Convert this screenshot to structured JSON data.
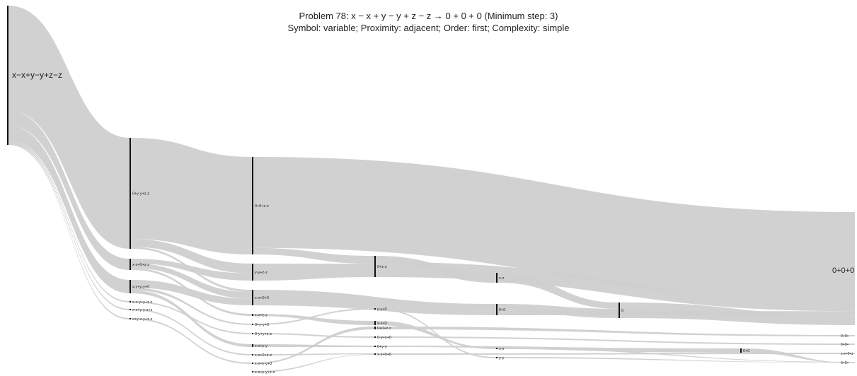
{
  "title": {
    "line1": "Problem 78: x − x + y − y + z − z → 0 + 0 + 0 (Minimum step: 3)",
    "line2": "Symbol: variable; Proximity: adjacent; Order: first; Complexity: simple"
  },
  "colors": {
    "link": "#cfcfcf",
    "link_minor": "#e4e4e4",
    "node": "#111111"
  },
  "nodes": [
    {
      "id": "n0",
      "label": "x−x+y−y+z−z",
      "step": 0,
      "size": "big"
    },
    {
      "id": "n1",
      "label": "0+y-y+z-z",
      "step": 1
    },
    {
      "id": "n2",
      "label": "x-x+0+z-z",
      "step": 1
    },
    {
      "id": "n3",
      "label": "x-x+y-y+0",
      "step": 1
    },
    {
      "id": "n4",
      "label": "x-x-y+y+z-z",
      "step": 1
    },
    {
      "id": "n5",
      "label": "x-x+y-y-z+z",
      "step": 1
    },
    {
      "id": "n6",
      "label": "x+y-x-y+z-z",
      "step": 1
    },
    {
      "id": "n7",
      "label": "0+0+z-z",
      "step": 2
    },
    {
      "id": "n8",
      "label": "y-y+z-z",
      "step": 2
    },
    {
      "id": "n9",
      "label": "x-x+0+0",
      "step": 2
    },
    {
      "id": "n10",
      "label": "x-x+z-z",
      "step": 2
    },
    {
      "id": "n11",
      "label": "0+y-y+0",
      "step": 2
    },
    {
      "id": "n12",
      "label": "0-y+y+z-z",
      "step": 2
    },
    {
      "id": "n13",
      "label": "x-x+y-y",
      "step": 2
    },
    {
      "id": "n14",
      "label": "x-x+0+z-z",
      "step": 2
    },
    {
      "id": "n15",
      "label": "x-x+y-y+0",
      "step": 2
    },
    {
      "id": "n16",
      "label": "x-x+y-y+z-z",
      "step": 2
    },
    {
      "id": "n17",
      "label": "0+z-z",
      "step": 3
    },
    {
      "id": "n18",
      "label": "y-y+0",
      "step": 3
    },
    {
      "id": "n19",
      "label": "x-x+0",
      "step": 3
    },
    {
      "id": "n20",
      "label": "0+0+z-z",
      "step": 3
    },
    {
      "id": "n21",
      "label": "0-y+y+0",
      "step": 3
    },
    {
      "id": "n22",
      "label": "0+y-y",
      "step": 3
    },
    {
      "id": "n23",
      "label": "x-x+0+0",
      "step": 3
    },
    {
      "id": "n24",
      "label": "z-z",
      "step": 4
    },
    {
      "id": "n25",
      "label": "0+0",
      "step": 4
    },
    {
      "id": "n26",
      "label": "x-x",
      "step": 4
    },
    {
      "id": "n27",
      "label": "y-y",
      "step": 4
    },
    {
      "id": "n28",
      "label": "0",
      "step": 5
    },
    {
      "id": "n29",
      "label": "0+0",
      "step": 6
    },
    {
      "id": "n30",
      "label": "0+0+0",
      "step": 7,
      "size": "big"
    },
    {
      "id": "n31",
      "label": "0+0+",
      "step": 7
    },
    {
      "id": "n32",
      "label": "0+0+",
      "step": 7
    },
    {
      "id": "n33",
      "label": "x-x+0+z",
      "step": 7
    },
    {
      "id": "n34",
      "label": "0+0+",
      "step": 7
    }
  ],
  "links": [
    {
      "source": "n0",
      "target": "n1",
      "value": 28
    },
    {
      "source": "n0",
      "target": "n2",
      "value": 4
    },
    {
      "source": "n0",
      "target": "n3",
      "value": 4
    },
    {
      "source": "n0",
      "target": "n4",
      "value": 0.4
    },
    {
      "source": "n0",
      "target": "n5",
      "value": 0.4
    },
    {
      "source": "n0",
      "target": "n6",
      "value": 0.3
    },
    {
      "source": "n1",
      "target": "n7",
      "value": 26
    },
    {
      "source": "n1",
      "target": "n8",
      "value": 2
    },
    {
      "source": "n1",
      "target": "n9",
      "value": 0.5
    },
    {
      "source": "n2",
      "target": "n8",
      "value": 1.5
    },
    {
      "source": "n2",
      "target": "n9",
      "value": 1.5
    },
    {
      "source": "n2",
      "target": "n10",
      "value": 0.6
    },
    {
      "source": "n3",
      "target": "n9",
      "value": 1.5
    },
    {
      "source": "n3",
      "target": "n11",
      "value": 0.5
    },
    {
      "source": "n3",
      "target": "n13",
      "value": 0.6
    },
    {
      "source": "n4",
      "target": "n12",
      "value": 0.3
    },
    {
      "source": "n5",
      "target": "n14",
      "value": 0.2
    },
    {
      "source": "n6",
      "target": "n15",
      "value": 0.2
    },
    {
      "source": "n7",
      "target": "n30",
      "value": 21
    },
    {
      "source": "n7",
      "target": "n17",
      "value": 1.5
    },
    {
      "source": "n8",
      "target": "n17",
      "value": 2.5
    },
    {
      "source": "n9",
      "target": "n25",
      "value": 2.5
    },
    {
      "source": "n10",
      "target": "n19",
      "value": 0.4
    },
    {
      "source": "n11",
      "target": "n18",
      "value": 0.3
    },
    {
      "source": "n12",
      "target": "n21",
      "value": 0.2
    },
    {
      "source": "n13",
      "target": "n22",
      "value": 0.3
    },
    {
      "source": "n14",
      "target": "n23",
      "value": 0.2
    },
    {
      "source": "n15",
      "target": "n20",
      "value": 0.2
    },
    {
      "source": "n16",
      "target": "n23",
      "value": 0.1
    },
    {
      "source": "n17",
      "target": "n24",
      "value": 1
    },
    {
      "source": "n17",
      "target": "n30",
      "value": 2.5
    },
    {
      "source": "n18",
      "target": "n27",
      "value": 0.2
    },
    {
      "source": "n19",
      "target": "n26",
      "value": 0.3
    },
    {
      "source": "n20",
      "target": "n31",
      "value": 0.2
    },
    {
      "source": "n21",
      "target": "n32",
      "value": 0.2
    },
    {
      "source": "n22",
      "target": "n29",
      "value": 0.2
    },
    {
      "source": "n23",
      "target": "n33",
      "value": 0.2
    },
    {
      "source": "n24",
      "target": "n28",
      "value": 1
    },
    {
      "source": "n25",
      "target": "n28",
      "value": 1.5
    },
    {
      "source": "n25",
      "target": "n30",
      "value": 1
    },
    {
      "source": "n26",
      "target": "n34",
      "value": 0.2
    },
    {
      "source": "n27",
      "target": "n34",
      "value": 0.1
    },
    {
      "source": "n28",
      "target": "n30",
      "value": 2.3
    },
    {
      "source": "n29",
      "target": "n34",
      "value": 0.2
    }
  ]
}
